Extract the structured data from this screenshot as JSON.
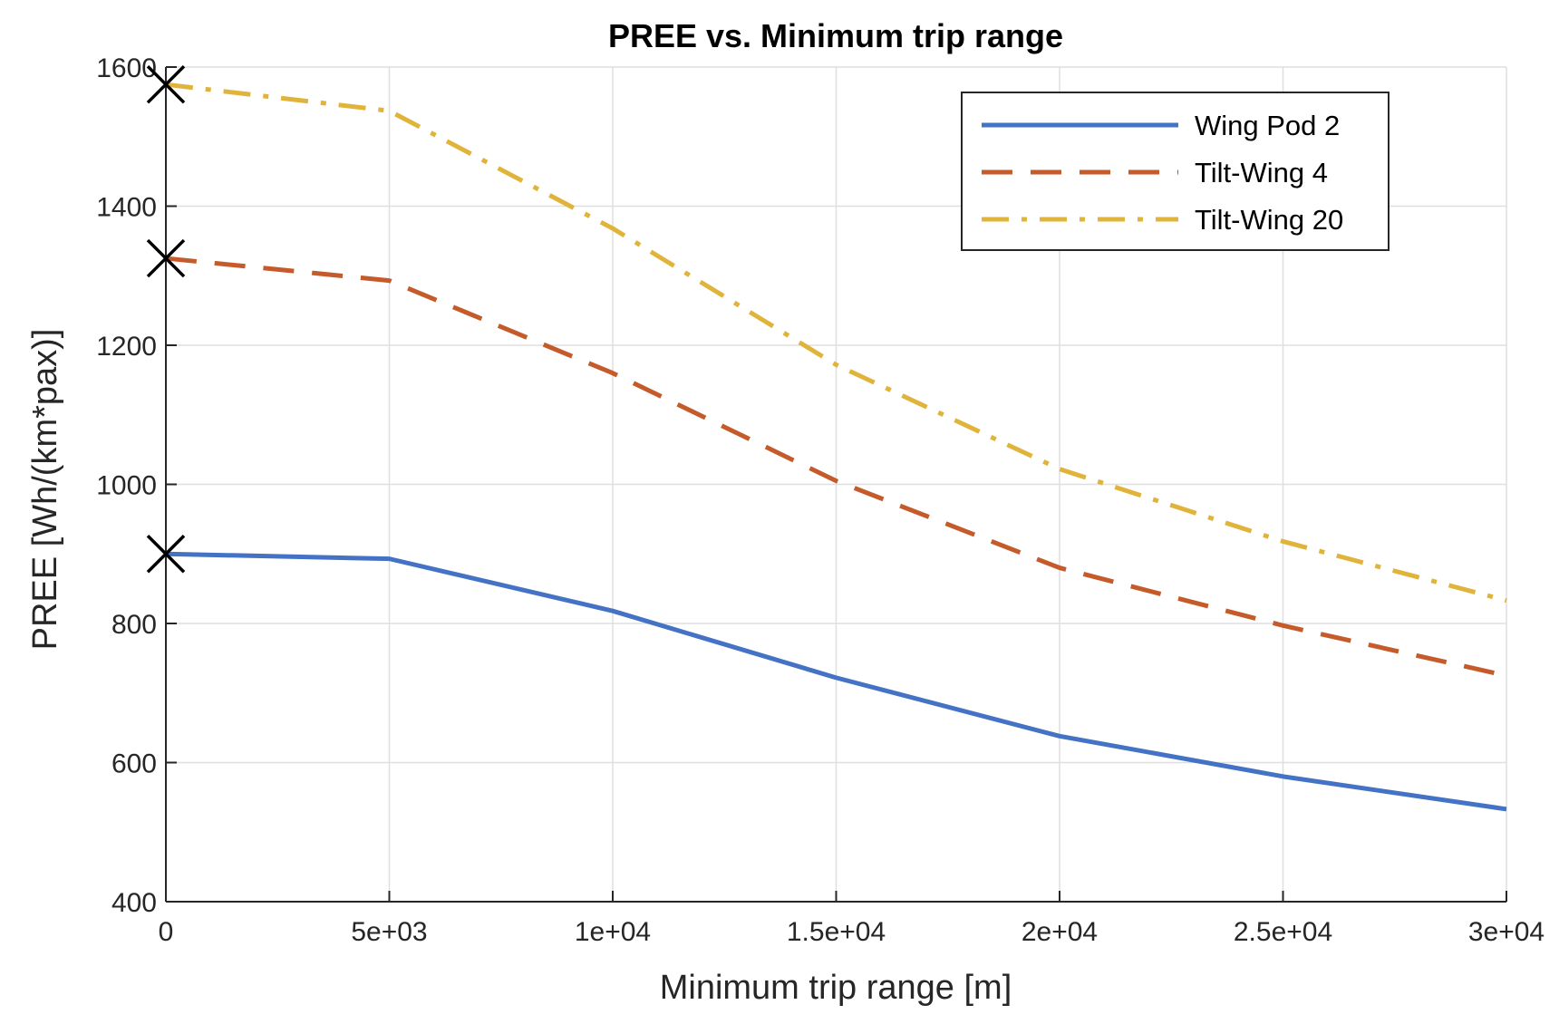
{
  "chart_data": {
    "type": "line",
    "title": "PREE vs. Minimum trip range",
    "xlabel": "Minimum trip range [m]",
    "ylabel": "PREE [Wh/(km*pax)]",
    "xlim": [
      0,
      30000
    ],
    "ylim": [
      400,
      1600
    ],
    "xticks": [
      0,
      5000,
      10000,
      15000,
      20000,
      25000,
      30000
    ],
    "xtick_labels": [
      "0",
      "5e+03",
      "1e+04",
      "1.5e+04",
      "2e+04",
      "2.5e+04",
      "3e+04"
    ],
    "yticks": [
      400,
      600,
      800,
      1000,
      1200,
      1400,
      1600
    ],
    "ytick_labels": [
      "400",
      "600",
      "800",
      "1000",
      "1200",
      "1400",
      "1600"
    ],
    "grid": true,
    "legend_position": "top-right",
    "x": [
      0,
      5000,
      10000,
      15000,
      20000,
      25000,
      30000
    ],
    "series": [
      {
        "name": "Wing Pod 2",
        "color": "#4472c4",
        "style": "solid",
        "values": [
          900,
          893,
          818,
          722,
          638,
          580,
          533
        ]
      },
      {
        "name": "Tilt-Wing 4",
        "color": "#c55a2a",
        "style": "dashed",
        "values": [
          1325,
          1293,
          1160,
          1005,
          880,
          797,
          725
        ]
      },
      {
        "name": "Tilt-Wing 20",
        "color": "#e0b43a",
        "style": "dashdot",
        "values": [
          1575,
          1537,
          1368,
          1172,
          1022,
          918,
          833
        ]
      }
    ],
    "markers": [
      {
        "symbol": "x",
        "x": 0,
        "y": 1575
      },
      {
        "symbol": "x",
        "x": 0,
        "y": 1325
      },
      {
        "symbol": "x",
        "x": 0,
        "y": 900
      }
    ]
  }
}
